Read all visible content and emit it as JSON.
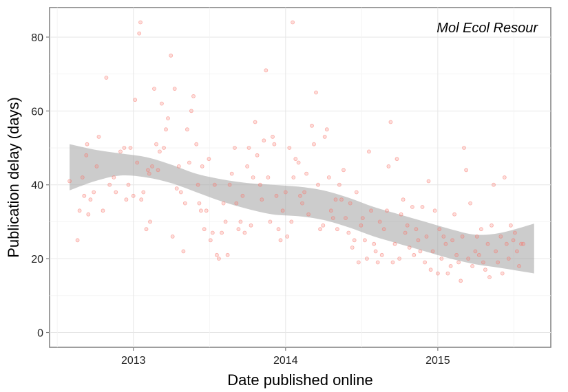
{
  "chart_data": {
    "type": "scatter",
    "title": "Mol Ecol Resour",
    "xlabel": "Date published online",
    "ylabel": "Publication delay (days)",
    "xlim": [
      "2012-06-14",
      "2015-09-29"
    ],
    "ylim": [
      -4,
      88
    ],
    "x_ticks": [
      "2013",
      "2014",
      "2015"
    ],
    "y_ticks": [
      0,
      20,
      40,
      60,
      80
    ],
    "grid": true,
    "point_color": "#F8766D",
    "band_color": "#999999",
    "trend": {
      "x": [
        "2012-08-01",
        "2012-10-01",
        "2012-12-01",
        "2013-02-01",
        "2013-04-01",
        "2013-06-01",
        "2013-08-01",
        "2013-10-01",
        "2013-12-01",
        "2014-02-01",
        "2014-04-01",
        "2014-06-01",
        "2014-08-01",
        "2014-10-01",
        "2014-12-01",
        "2015-02-01",
        "2015-04-01",
        "2015-06-01",
        "2015-08-20"
      ],
      "y": [
        44.6,
        45.3,
        45.5,
        44.8,
        43.0,
        40.5,
        38.5,
        37.0,
        36.0,
        35.5,
        34.5,
        32.5,
        30.0,
        28.0,
        26.0,
        24.0,
        22.5,
        22.3,
        22.7
      ],
      "lower": [
        38.5,
        41.0,
        42.5,
        42.0,
        40.5,
        38.0,
        35.5,
        33.5,
        32.0,
        31.5,
        30.5,
        28.5,
        26.0,
        24.0,
        22.0,
        20.0,
        18.5,
        17.5,
        16.0
      ],
      "upper": [
        51.0,
        49.5,
        48.5,
        47.5,
        45.5,
        43.0,
        41.5,
        40.5,
        40.0,
        39.5,
        38.5,
        36.5,
        34.0,
        32.0,
        30.0,
        28.0,
        26.5,
        27.0,
        29.5
      ]
    },
    "points": [
      [
        "2012-08-01",
        41
      ],
      [
        "2012-08-20",
        25
      ],
      [
        "2012-08-25",
        33
      ],
      [
        "2012-09-01",
        42
      ],
      [
        "2012-09-05",
        37
      ],
      [
        "2012-09-10",
        48
      ],
      [
        "2012-09-12",
        51
      ],
      [
        "2012-09-15",
        32
      ],
      [
        "2012-09-20",
        36
      ],
      [
        "2012-09-28",
        38
      ],
      [
        "2012-10-05",
        45
      ],
      [
        "2012-10-10",
        53
      ],
      [
        "2012-10-20",
        33
      ],
      [
        "2012-10-28",
        69
      ],
      [
        "2012-11-05",
        40
      ],
      [
        "2012-11-15",
        42
      ],
      [
        "2012-11-20",
        38
      ],
      [
        "2012-12-01",
        49
      ],
      [
        "2012-12-10",
        50
      ],
      [
        "2012-12-15",
        36
      ],
      [
        "2012-12-20",
        40
      ],
      [
        "2012-12-25",
        50
      ],
      [
        "2013-01-01",
        37
      ],
      [
        "2013-01-05",
        63
      ],
      [
        "2013-01-10",
        46
      ],
      [
        "2013-01-15",
        81
      ],
      [
        "2013-01-18",
        84
      ],
      [
        "2013-01-20",
        36
      ],
      [
        "2013-01-25",
        38
      ],
      [
        "2013-02-01",
        28
      ],
      [
        "2013-02-05",
        44
      ],
      [
        "2013-02-08",
        43
      ],
      [
        "2013-02-10",
        30
      ],
      [
        "2013-02-15",
        45
      ],
      [
        "2013-02-20",
        66
      ],
      [
        "2013-02-25",
        51
      ],
      [
        "2013-03-01",
        44
      ],
      [
        "2013-03-05",
        49
      ],
      [
        "2013-03-10",
        62
      ],
      [
        "2013-03-15",
        50
      ],
      [
        "2013-03-20",
        55
      ],
      [
        "2013-03-25",
        58
      ],
      [
        "2013-04-01",
        75
      ],
      [
        "2013-04-05",
        26
      ],
      [
        "2013-04-10",
        66
      ],
      [
        "2013-04-15",
        39
      ],
      [
        "2013-04-20",
        45
      ],
      [
        "2013-04-25",
        38
      ],
      [
        "2013-05-01",
        22
      ],
      [
        "2013-05-05",
        35
      ],
      [
        "2013-05-10",
        55
      ],
      [
        "2013-05-15",
        46
      ],
      [
        "2013-05-20",
        60
      ],
      [
        "2013-05-25",
        64
      ],
      [
        "2013-06-01",
        51
      ],
      [
        "2013-06-05",
        40
      ],
      [
        "2013-06-08",
        35
      ],
      [
        "2013-06-12",
        33
      ],
      [
        "2013-06-15",
        45
      ],
      [
        "2013-06-20",
        28
      ],
      [
        "2013-06-25",
        33
      ],
      [
        "2013-07-01",
        47
      ],
      [
        "2013-07-05",
        25
      ],
      [
        "2013-07-10",
        27
      ],
      [
        "2013-07-15",
        40
      ],
      [
        "2013-07-20",
        21
      ],
      [
        "2013-07-25",
        20
      ],
      [
        "2013-08-01",
        27
      ],
      [
        "2013-08-05",
        35
      ],
      [
        "2013-08-10",
        30
      ],
      [
        "2013-08-15",
        21
      ],
      [
        "2013-08-20",
        40
      ],
      [
        "2013-08-25",
        43
      ],
      [
        "2013-09-01",
        50
      ],
      [
        "2013-09-05",
        35
      ],
      [
        "2013-09-10",
        28
      ],
      [
        "2013-09-15",
        30
      ],
      [
        "2013-09-20",
        37
      ],
      [
        "2013-09-25",
        27
      ],
      [
        "2013-10-01",
        45
      ],
      [
        "2013-10-05",
        50
      ],
      [
        "2013-10-10",
        29
      ],
      [
        "2013-10-15",
        42
      ],
      [
        "2013-10-20",
        57
      ],
      [
        "2013-10-25",
        48
      ],
      [
        "2013-11-01",
        40
      ],
      [
        "2013-11-05",
        36
      ],
      [
        "2013-11-10",
        52
      ],
      [
        "2013-11-15",
        71
      ],
      [
        "2013-11-20",
        42
      ],
      [
        "2013-11-25",
        30
      ],
      [
        "2013-12-01",
        53
      ],
      [
        "2013-12-05",
        51
      ],
      [
        "2013-12-10",
        37
      ],
      [
        "2013-12-15",
        28
      ],
      [
        "2013-12-20",
        25
      ],
      [
        "2013-12-25",
        33
      ],
      [
        "2014-01-01",
        38
      ],
      [
        "2014-01-05",
        26
      ],
      [
        "2014-01-10",
        50
      ],
      [
        "2014-01-15",
        30
      ],
      [
        "2014-01-18",
        84
      ],
      [
        "2014-01-20",
        42
      ],
      [
        "2014-01-25",
        47
      ],
      [
        "2014-02-01",
        46
      ],
      [
        "2014-02-05",
        37
      ],
      [
        "2014-02-10",
        35
      ],
      [
        "2014-02-15",
        38
      ],
      [
        "2014-02-20",
        43
      ],
      [
        "2014-02-25",
        32
      ],
      [
        "2014-03-05",
        56
      ],
      [
        "2014-03-10",
        51
      ],
      [
        "2014-03-15",
        65
      ],
      [
        "2014-03-20",
        40
      ],
      [
        "2014-03-25",
        28
      ],
      [
        "2014-04-01",
        29
      ],
      [
        "2014-04-05",
        53
      ],
      [
        "2014-04-10",
        55
      ],
      [
        "2014-04-15",
        42
      ],
      [
        "2014-04-20",
        33
      ],
      [
        "2014-04-25",
        31
      ],
      [
        "2014-05-01",
        36
      ],
      [
        "2014-05-05",
        28
      ],
      [
        "2014-05-10",
        40
      ],
      [
        "2014-05-15",
        36
      ],
      [
        "2014-05-20",
        44
      ],
      [
        "2014-05-25",
        31
      ],
      [
        "2014-06-01",
        27
      ],
      [
        "2014-06-05",
        35
      ],
      [
        "2014-06-10",
        23
      ],
      [
        "2014-06-15",
        25
      ],
      [
        "2014-06-20",
        38
      ],
      [
        "2014-06-25",
        19
      ],
      [
        "2014-07-01",
        29
      ],
      [
        "2014-07-05",
        31
      ],
      [
        "2014-07-10",
        25
      ],
      [
        "2014-07-15",
        20
      ],
      [
        "2014-07-20",
        49
      ],
      [
        "2014-07-25",
        33
      ],
      [
        "2014-08-01",
        24
      ],
      [
        "2014-08-05",
        22
      ],
      [
        "2014-08-10",
        19
      ],
      [
        "2014-08-15",
        30
      ],
      [
        "2014-08-20",
        21
      ],
      [
        "2014-08-25",
        28
      ],
      [
        "2014-09-01",
        33
      ],
      [
        "2014-09-05",
        45
      ],
      [
        "2014-09-10",
        57
      ],
      [
        "2014-09-15",
        19
      ],
      [
        "2014-09-20",
        24
      ],
      [
        "2014-09-25",
        47
      ],
      [
        "2014-10-01",
        20
      ],
      [
        "2014-10-05",
        32
      ],
      [
        "2014-10-10",
        36
      ],
      [
        "2014-10-15",
        27
      ],
      [
        "2014-10-20",
        29
      ],
      [
        "2014-10-25",
        23
      ],
      [
        "2014-11-01",
        34
      ],
      [
        "2014-11-05",
        21
      ],
      [
        "2014-11-10",
        28
      ],
      [
        "2014-11-15",
        25
      ],
      [
        "2014-11-20",
        22
      ],
      [
        "2014-11-25",
        34
      ],
      [
        "2014-12-01",
        19
      ],
      [
        "2014-12-05",
        26
      ],
      [
        "2014-12-10",
        41
      ],
      [
        "2014-12-15",
        17
      ],
      [
        "2014-12-20",
        22
      ],
      [
        "2014-12-25",
        33
      ],
      [
        "2015-01-01",
        16
      ],
      [
        "2015-01-05",
        28
      ],
      [
        "2015-01-10",
        20
      ],
      [
        "2015-01-15",
        26
      ],
      [
        "2015-01-20",
        24
      ],
      [
        "2015-01-25",
        16
      ],
      [
        "2015-02-01",
        18
      ],
      [
        "2015-02-05",
        25
      ],
      [
        "2015-02-10",
        32
      ],
      [
        "2015-02-15",
        21
      ],
      [
        "2015-02-20",
        19
      ],
      [
        "2015-02-25",
        14
      ],
      [
        "2015-03-01",
        26
      ],
      [
        "2015-03-05",
        50
      ],
      [
        "2015-03-10",
        44
      ],
      [
        "2015-03-15",
        20
      ],
      [
        "2015-03-20",
        35
      ],
      [
        "2015-03-25",
        18
      ],
      [
        "2015-04-01",
        22
      ],
      [
        "2015-04-05",
        26
      ],
      [
        "2015-04-10",
        21
      ],
      [
        "2015-04-15",
        28
      ],
      [
        "2015-04-20",
        19
      ],
      [
        "2015-04-25",
        17
      ],
      [
        "2015-05-01",
        24
      ],
      [
        "2015-05-05",
        15
      ],
      [
        "2015-05-10",
        29
      ],
      [
        "2015-05-15",
        40
      ],
      [
        "2015-05-20",
        22
      ],
      [
        "2015-05-25",
        19
      ],
      [
        "2015-06-01",
        26
      ],
      [
        "2015-06-05",
        16
      ],
      [
        "2015-06-10",
        42
      ],
      [
        "2015-06-15",
        24
      ],
      [
        "2015-06-20",
        20
      ],
      [
        "2015-06-25",
        29
      ],
      [
        "2015-07-01",
        25
      ],
      [
        "2015-07-05",
        27
      ],
      [
        "2015-07-10",
        22
      ],
      [
        "2015-07-15",
        18
      ],
      [
        "2015-07-20",
        24
      ],
      [
        "2015-07-25",
        24
      ]
    ]
  }
}
